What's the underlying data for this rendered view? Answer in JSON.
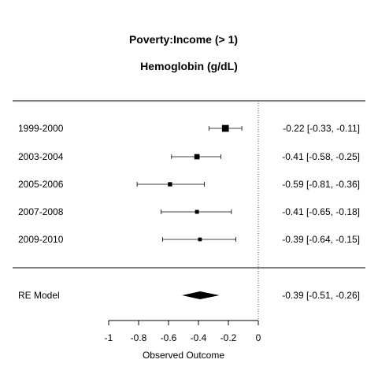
{
  "chart_data": {
    "type": "forest",
    "title": "Poverty:Income (> 1)",
    "subtitle": "Hemoglobin (g/dL)",
    "xlabel": "Observed Outcome",
    "xlim": [
      -1,
      0
    ],
    "xticks": [
      {
        "value": -1,
        "label": "-1"
      },
      {
        "value": -0.8,
        "label": "-0.8"
      },
      {
        "value": -0.6,
        "label": "-0.6"
      },
      {
        "value": -0.4,
        "label": "-0.4"
      },
      {
        "value": -0.2,
        "label": "-0.2"
      },
      {
        "value": 0,
        "label": "0"
      }
    ],
    "reference_line": 0,
    "studies": [
      {
        "label": "1999-2000",
        "estimate": -0.22,
        "lower": -0.33,
        "upper": -0.11,
        "weight": 0.28,
        "ci_text": "-0.22 [-0.33, -0.11]"
      },
      {
        "label": "2003-2004",
        "estimate": -0.41,
        "lower": -0.58,
        "upper": -0.25,
        "weight": 0.19,
        "ci_text": "-0.41 [-0.58, -0.25]"
      },
      {
        "label": "2005-2006",
        "estimate": -0.59,
        "lower": -0.81,
        "upper": -0.36,
        "weight": 0.13,
        "ci_text": "-0.59 [-0.81, -0.36]"
      },
      {
        "label": "2007-2008",
        "estimate": -0.41,
        "lower": -0.65,
        "upper": -0.18,
        "weight": 0.11,
        "ci_text": "-0.41 [-0.65, -0.18]"
      },
      {
        "label": "2009-2010",
        "estimate": -0.39,
        "lower": -0.64,
        "upper": -0.15,
        "weight": 0.1,
        "ci_text": "-0.39 [-0.64, -0.15]"
      }
    ],
    "summary": {
      "label": "RE Model",
      "estimate": -0.39,
      "lower": -0.51,
      "upper": -0.26,
      "ci_text": "-0.39 [-0.51, -0.26]"
    }
  }
}
